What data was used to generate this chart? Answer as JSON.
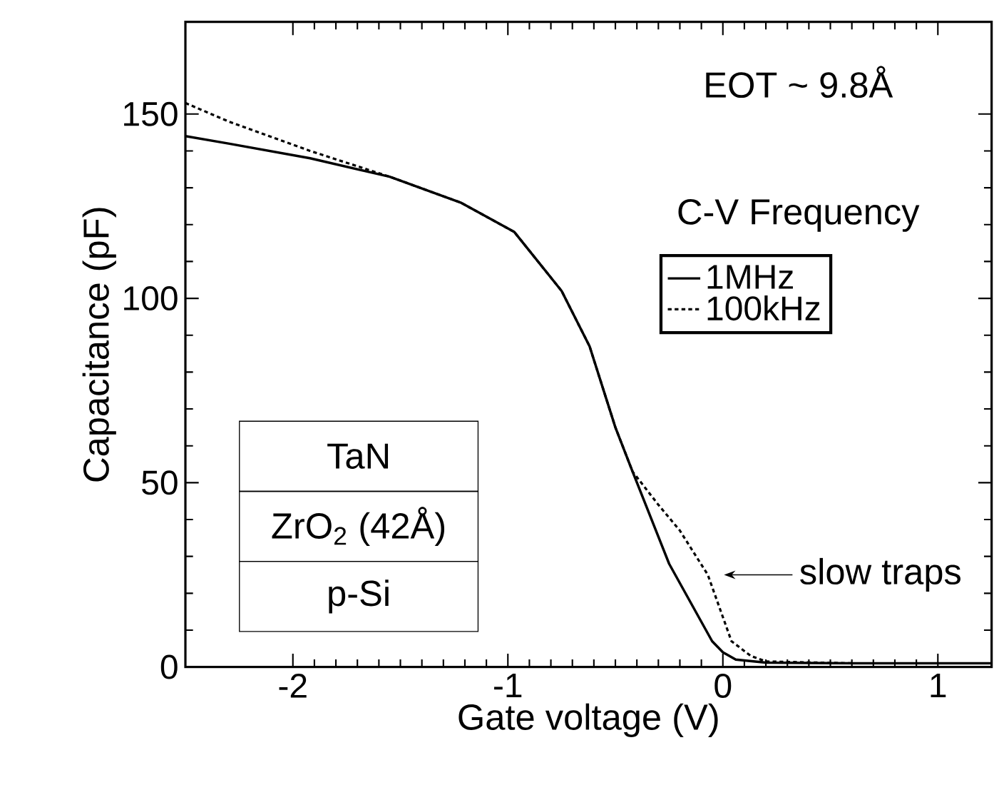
{
  "chart_data": {
    "type": "line",
    "xlabel": "Gate voltage (V)",
    "ylabel": "Capacitance (pF)",
    "legend_title": "C-V Frequency",
    "xlim": [
      -2.5,
      1.25
    ],
    "ylim": [
      0,
      175
    ],
    "xticks": [
      -2,
      -1,
      0,
      1
    ],
    "yticks": [
      0,
      50,
      100,
      150
    ],
    "legend": "top right",
    "grid": false,
    "marker": "none",
    "series": [
      {
        "name": "1MHz",
        "color": "#000000",
        "line_style": "solid",
        "x": [
          -2.5,
          -2.3,
          -1.92,
          -1.55,
          -1.22,
          -0.97,
          -0.75,
          -0.62,
          -0.5,
          -0.42,
          -0.25,
          -0.05,
          0.0,
          0.06,
          0.2,
          0.6,
          1.25
        ],
        "values": [
          144,
          142,
          138,
          133,
          126,
          118,
          102,
          87,
          65,
          53,
          28,
          7,
          4,
          2,
          1.2,
          1,
          1
        ]
      },
      {
        "name": "100kHz",
        "color": "#000000",
        "line_style": "dotted",
        "x": [
          -2.5,
          -2.3,
          -1.92,
          -1.55,
          -1.22,
          -0.97,
          -0.75,
          -0.62,
          -0.5,
          -0.42,
          -0.3,
          -0.2,
          -0.07,
          0.04,
          0.13,
          0.2,
          0.6,
          1.25
        ],
        "values": [
          153,
          148,
          140,
          133,
          126,
          118,
          102,
          87,
          65,
          53,
          44,
          37,
          25,
          7,
          3,
          1.5,
          1,
          1
        ]
      }
    ],
    "annotations": [
      "EOT ~ 9.8Å",
      "TaN",
      "ZrO$_{2}$ (42Å)",
      "p-Si",
      {
        "text": "slow traps",
        "x": -0.03,
        "y": 25
      }
    ]
  }
}
